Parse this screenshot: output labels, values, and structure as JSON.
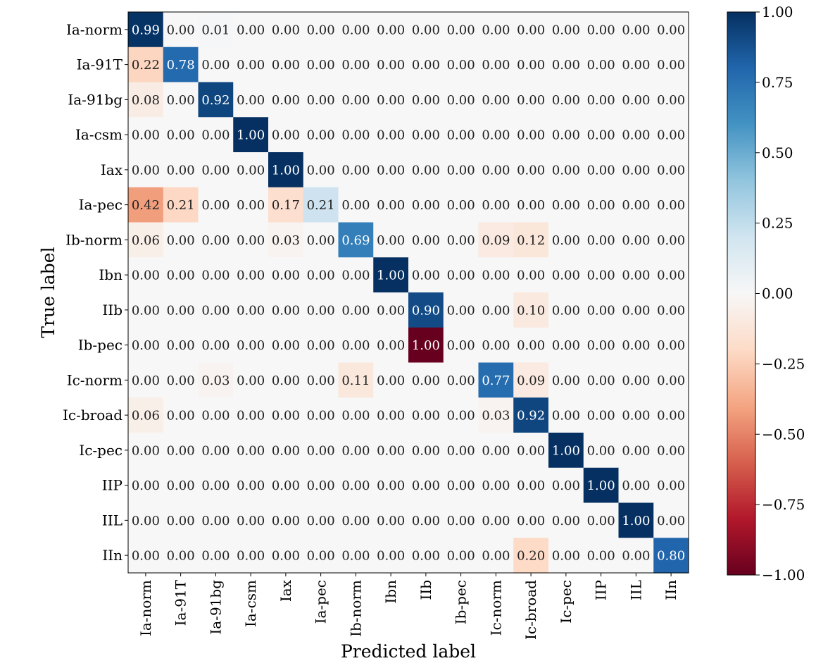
{
  "chart_data": {
    "type": "heatmap",
    "title": "",
    "xlabel": "Predicted label",
    "ylabel": "True label",
    "x_categories": [
      "Ia-norm",
      "Ia-91T",
      "Ia-91bg",
      "Ia-csm",
      "Iax",
      "Ia-pec",
      "Ib-norm",
      "Ibn",
      "IIb",
      "Ib-pec",
      "Ic-norm",
      "Ic-broad",
      "Ic-pec",
      "IIP",
      "IIL",
      "IIn"
    ],
    "y_categories": [
      "Ia-norm",
      "Ia-91T",
      "Ia-91bg",
      "Ia-csm",
      "Iax",
      "Ia-pec",
      "Ib-norm",
      "Ibn",
      "IIb",
      "Ib-pec",
      "Ic-norm",
      "Ic-broad",
      "Ic-pec",
      "IIP",
      "IIL",
      "IIn"
    ],
    "values": [
      [
        0.99,
        0,
        0.01,
        0,
        0,
        0,
        0,
        0,
        0,
        0,
        0,
        0,
        0,
        0,
        0,
        0
      ],
      [
        0.22,
        0.78,
        0,
        0,
        0,
        0,
        0,
        0,
        0,
        0,
        0,
        0,
        0,
        0,
        0,
        0
      ],
      [
        0.08,
        0,
        0.92,
        0,
        0,
        0,
        0,
        0,
        0,
        0,
        0,
        0,
        0,
        0,
        0,
        0
      ],
      [
        0,
        0,
        0,
        1.0,
        0,
        0,
        0,
        0,
        0,
        0,
        0,
        0,
        0,
        0,
        0,
        0
      ],
      [
        0,
        0,
        0,
        0,
        1.0,
        0,
        0,
        0,
        0,
        0,
        0,
        0,
        0,
        0,
        0,
        0
      ],
      [
        0.42,
        0.21,
        0,
        0,
        0.17,
        0.21,
        0,
        0,
        0,
        0,
        0,
        0,
        0,
        0,
        0,
        0
      ],
      [
        0.06,
        0,
        0,
        0,
        0.03,
        0,
        0.69,
        0,
        0,
        0,
        0.09,
        0.12,
        0,
        0,
        0,
        0
      ],
      [
        0,
        0,
        0,
        0,
        0,
        0,
        0,
        1.0,
        0,
        0,
        0,
        0,
        0,
        0,
        0,
        0
      ],
      [
        0,
        0,
        0,
        0,
        0,
        0,
        0,
        0,
        0.9,
        0,
        0,
        0.1,
        0,
        0,
        0,
        0
      ],
      [
        0,
        0,
        0,
        0,
        0,
        0,
        0,
        0,
        1.0,
        0,
        0,
        0,
        0,
        0,
        0,
        0
      ],
      [
        0,
        0,
        0.03,
        0,
        0,
        0,
        0.11,
        0,
        0,
        0,
        0.77,
        0.09,
        0,
        0,
        0,
        0
      ],
      [
        0.06,
        0,
        0,
        0,
        0,
        0,
        0,
        0,
        0,
        0,
        0.03,
        0.92,
        0,
        0,
        0,
        0
      ],
      [
        0,
        0,
        0,
        0,
        0,
        0,
        0,
        0,
        0,
        0,
        0,
        0,
        1.0,
        0,
        0,
        0
      ],
      [
        0,
        0,
        0,
        0,
        0,
        0,
        0,
        0,
        0,
        0,
        0,
        0,
        0,
        1.0,
        0,
        0
      ],
      [
        0,
        0,
        0,
        0,
        0,
        0,
        0,
        0,
        0,
        0,
        0,
        0,
        0,
        0,
        1.0,
        0
      ],
      [
        0,
        0,
        0,
        0,
        0,
        0,
        0,
        0,
        0,
        0,
        0,
        0.2,
        0,
        0,
        0,
        0.8
      ]
    ],
    "cell_sign": [
      [
        1,
        1,
        1,
        1,
        1,
        1,
        1,
        1,
        1,
        1,
        1,
        1,
        1,
        1,
        1,
        1
      ],
      [
        -1,
        1,
        1,
        1,
        1,
        1,
        1,
        1,
        1,
        1,
        1,
        1,
        1,
        1,
        1,
        1
      ],
      [
        -1,
        1,
        1,
        1,
        1,
        1,
        1,
        1,
        1,
        1,
        1,
        1,
        1,
        1,
        1,
        1
      ],
      [
        1,
        1,
        1,
        1,
        1,
        1,
        1,
        1,
        1,
        1,
        1,
        1,
        1,
        1,
        1,
        1
      ],
      [
        1,
        1,
        1,
        1,
        1,
        1,
        1,
        1,
        1,
        1,
        1,
        1,
        1,
        1,
        1,
        1
      ],
      [
        -1,
        -1,
        1,
        1,
        -1,
        1,
        1,
        1,
        1,
        1,
        1,
        1,
        1,
        1,
        1,
        1
      ],
      [
        -1,
        1,
        1,
        1,
        -1,
        1,
        1,
        1,
        1,
        1,
        -1,
        -1,
        1,
        1,
        1,
        1
      ],
      [
        1,
        1,
        1,
        1,
        1,
        1,
        1,
        1,
        1,
        1,
        1,
        1,
        1,
        1,
        1,
        1
      ],
      [
        1,
        1,
        1,
        1,
        1,
        1,
        1,
        1,
        1,
        1,
        1,
        -1,
        1,
        1,
        1,
        1
      ],
      [
        1,
        1,
        1,
        1,
        1,
        1,
        1,
        1,
        -1,
        1,
        1,
        1,
        1,
        1,
        1,
        1
      ],
      [
        1,
        1,
        -1,
        1,
        1,
        1,
        -1,
        1,
        1,
        1,
        1,
        -1,
        1,
        1,
        1,
        1
      ],
      [
        -1,
        1,
        1,
        1,
        1,
        1,
        1,
        1,
        1,
        1,
        -1,
        1,
        1,
        1,
        1,
        1
      ],
      [
        1,
        1,
        1,
        1,
        1,
        1,
        1,
        1,
        1,
        1,
        1,
        1,
        1,
        1,
        1,
        1
      ],
      [
        1,
        1,
        1,
        1,
        1,
        1,
        1,
        1,
        1,
        1,
        1,
        1,
        1,
        1,
        1,
        1
      ],
      [
        1,
        1,
        1,
        1,
        1,
        1,
        1,
        1,
        1,
        1,
        1,
        1,
        1,
        1,
        1,
        1
      ],
      [
        1,
        1,
        1,
        1,
        1,
        1,
        1,
        1,
        1,
        1,
        1,
        -1,
        1,
        1,
        1,
        1
      ]
    ],
    "value_format": "0.00",
    "colormap": "RdBu",
    "colormap_stops": [
      "#67001f",
      "#b2182b",
      "#d6604d",
      "#f4a582",
      "#fddbc7",
      "#f7f7f7",
      "#d1e5f0",
      "#92c5de",
      "#4393c3",
      "#2166ac",
      "#053061"
    ],
    "colorbar": {
      "range": [
        -1.0,
        1.0
      ],
      "ticks": [
        1.0,
        0.75,
        0.5,
        0.25,
        0.0,
        -0.25,
        -0.5,
        -0.75,
        -1.0
      ],
      "tick_labels": [
        "1.00",
        "0.75",
        "0.50",
        "0.25",
        "0.00",
        "−0.25",
        "−0.50",
        "−0.75",
        "−1.00"
      ]
    },
    "grid": false,
    "legend": "none"
  }
}
